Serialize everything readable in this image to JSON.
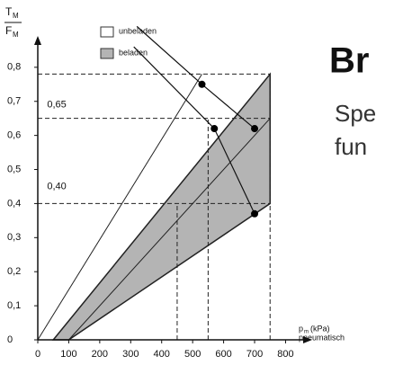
{
  "chart_data": {
    "type": "line",
    "y_label": {
      "numerator": "T",
      "numerator_sub": "M",
      "denominator": "F",
      "denominator_sub": "M"
    },
    "x_label": {
      "main": "p",
      "sub": "m",
      "unit": "(kPa)",
      "line2": "pneumatisch"
    },
    "xlim": [
      0,
      880
    ],
    "ylim": [
      0,
      0.95
    ],
    "xticks": [
      0,
      100,
      200,
      300,
      400,
      500,
      600,
      700,
      800
    ],
    "yticks": [
      0,
      {
        "value": 0.1,
        "label": "0,1"
      },
      {
        "value": 0.2,
        "label": "0,2"
      },
      {
        "value": 0.3,
        "label": "0,3"
      },
      {
        "value": 0.4,
        "label": "0,4"
      },
      {
        "value": 0.5,
        "label": "0,5"
      },
      {
        "value": 0.6,
        "label": "0,6"
      },
      {
        "value": 0.7,
        "label": "0,7"
      },
      {
        "value": 0.8,
        "label": "0,8"
      }
    ],
    "region": {
      "color": "#b4b4b4",
      "x": [
        50,
        750,
        750,
        100
      ],
      "values": [
        0,
        0.78,
        0.4,
        0
      ]
    },
    "series": [
      {
        "color": "#222222",
        "x": [
          0,
          530
        ],
        "values": [
          0,
          0.78
        ]
      },
      {
        "color": "#222222",
        "x": [
          100,
          750
        ],
        "values": [
          0,
          0.65
        ]
      }
    ],
    "dashed": [
      {
        "x": [
          0,
          750
        ],
        "values": [
          0.78,
          0.78
        ]
      },
      {
        "x": [
          0,
          750
        ],
        "values": [
          0.65,
          0.65
        ]
      },
      {
        "x": [
          0,
          750
        ],
        "values": [
          0.4,
          0.4
        ]
      },
      {
        "x": [
          450,
          450
        ],
        "values": [
          0,
          0.4
        ]
      },
      {
        "x": [
          550,
          550
        ],
        "values": [
          0,
          0.65
        ]
      },
      {
        "x": [
          750,
          750
        ],
        "values": [
          0,
          0.78
        ]
      }
    ],
    "points": {
      "color": "#000000",
      "x": [
        530,
        570,
        700,
        700
      ],
      "values": [
        0.75,
        0.62,
        0.62,
        0.37
      ]
    },
    "legend": [
      {
        "label": "unbeladen",
        "color": "#ffffff",
        "x": [
          320,
          530,
          700
        ],
        "values": [
          0.92,
          0.75,
          0.62
        ]
      },
      {
        "label": "beladen",
        "color": "#b4b4b4",
        "x": [
          310,
          570,
          700
        ],
        "values": [
          0.86,
          0.62,
          0.37
        ]
      }
    ],
    "annotations": [
      {
        "text": "0,65",
        "x": 30,
        "y": 0.69
      },
      {
        "text": "0,40",
        "x": 30,
        "y": 0.45
      }
    ],
    "slide_text": [
      "Br",
      "Spe",
      "fun"
    ]
  }
}
